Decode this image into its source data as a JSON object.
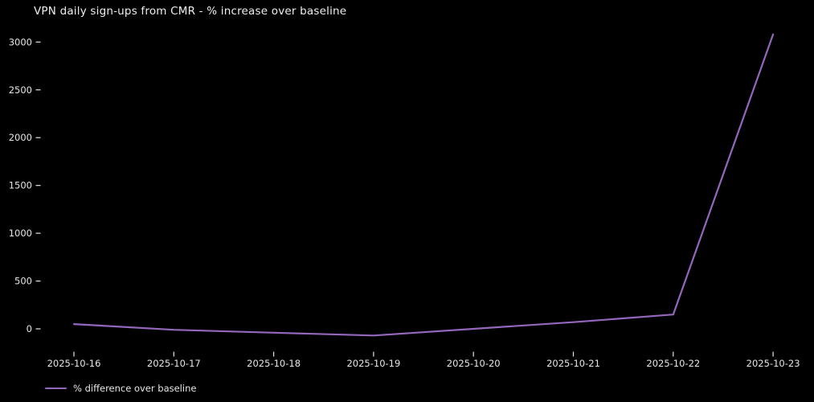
{
  "chart_data": {
    "type": "line",
    "title": "VPN daily sign-ups from CMR - % increase over baseline",
    "categories": [
      "2025-10-16",
      "2025-10-17",
      "2025-10-18",
      "2025-10-19",
      "2025-10-20",
      "2025-10-21",
      "2025-10-22",
      "2025-10-23"
    ],
    "series": [
      {
        "name": "% difference over baseline",
        "values": [
          50,
          -10,
          -40,
          -70,
          0,
          70,
          150,
          3080
        ]
      }
    ],
    "xlabel": "",
    "ylabel": "",
    "y_ticks": [
      0,
      500,
      1000,
      1500,
      2000,
      2500,
      3000
    ],
    "ylim": [
      -230,
      3240
    ],
    "grid": false,
    "legend_position": "lower-left-outside"
  },
  "colors": {
    "background": "#000000",
    "line": "#9467bd",
    "text": "#e6e6e6",
    "title_text": "#eeeeee"
  }
}
